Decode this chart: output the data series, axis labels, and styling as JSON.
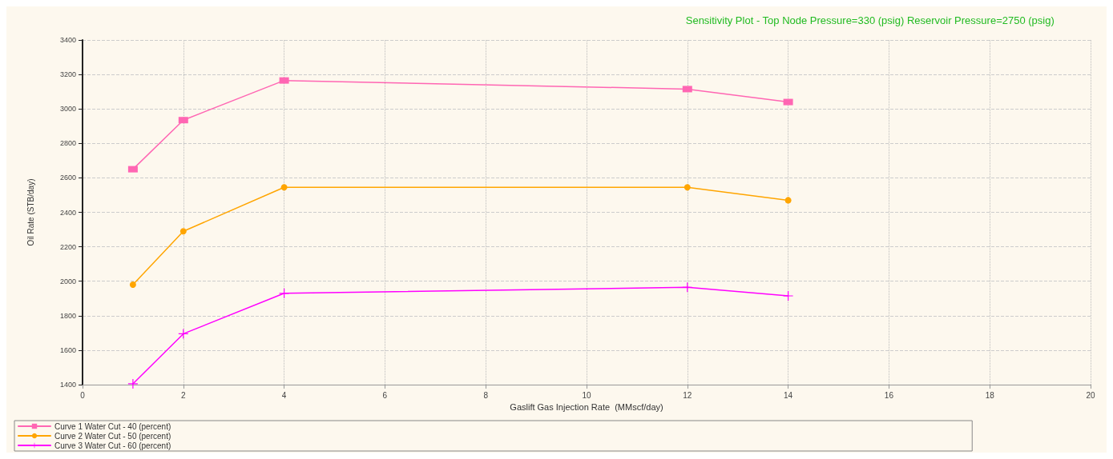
{
  "chart_data": {
    "type": "line",
    "title": "Sensitivity Plot - Top Node Pressure=330 (psig) Reservoir Pressure=2750 (psig)",
    "xlabel": "Gaslift Gas Injection Rate  (MMscf/day)",
    "ylabel": "Oil Rate (STB/day)",
    "x": [
      1,
      2,
      4,
      12,
      14
    ],
    "series": [
      {
        "name": "Curve 1 Water Cut - 40 (percent)",
        "color": "#ff66b3",
        "marker": "square",
        "values": [
          2650,
          2935,
          3165,
          3115,
          3040
        ]
      },
      {
        "name": "Curve 2 Water Cut - 50 (percent)",
        "color": "#ffa500",
        "marker": "circle",
        "values": [
          1980,
          2290,
          2545,
          2545,
          2470
        ]
      },
      {
        "name": "Curve 3 Water Cut - 60 (percent)",
        "color": "#ff00ff",
        "marker": "cross",
        "values": [
          1405,
          1695,
          1930,
          1965,
          1915
        ]
      }
    ],
    "xlim": [
      0,
      20
    ],
    "xticks": [
      0,
      2,
      4,
      6,
      8,
      10,
      12,
      14,
      16,
      18,
      20
    ],
    "ylim": [
      1400,
      3400
    ],
    "yticks": [
      1400,
      1600,
      1800,
      2000,
      2200,
      2400,
      2600,
      2800,
      3000,
      3200,
      3400
    ],
    "grid": true,
    "legend": "bottom left",
    "line_style": "solid"
  }
}
